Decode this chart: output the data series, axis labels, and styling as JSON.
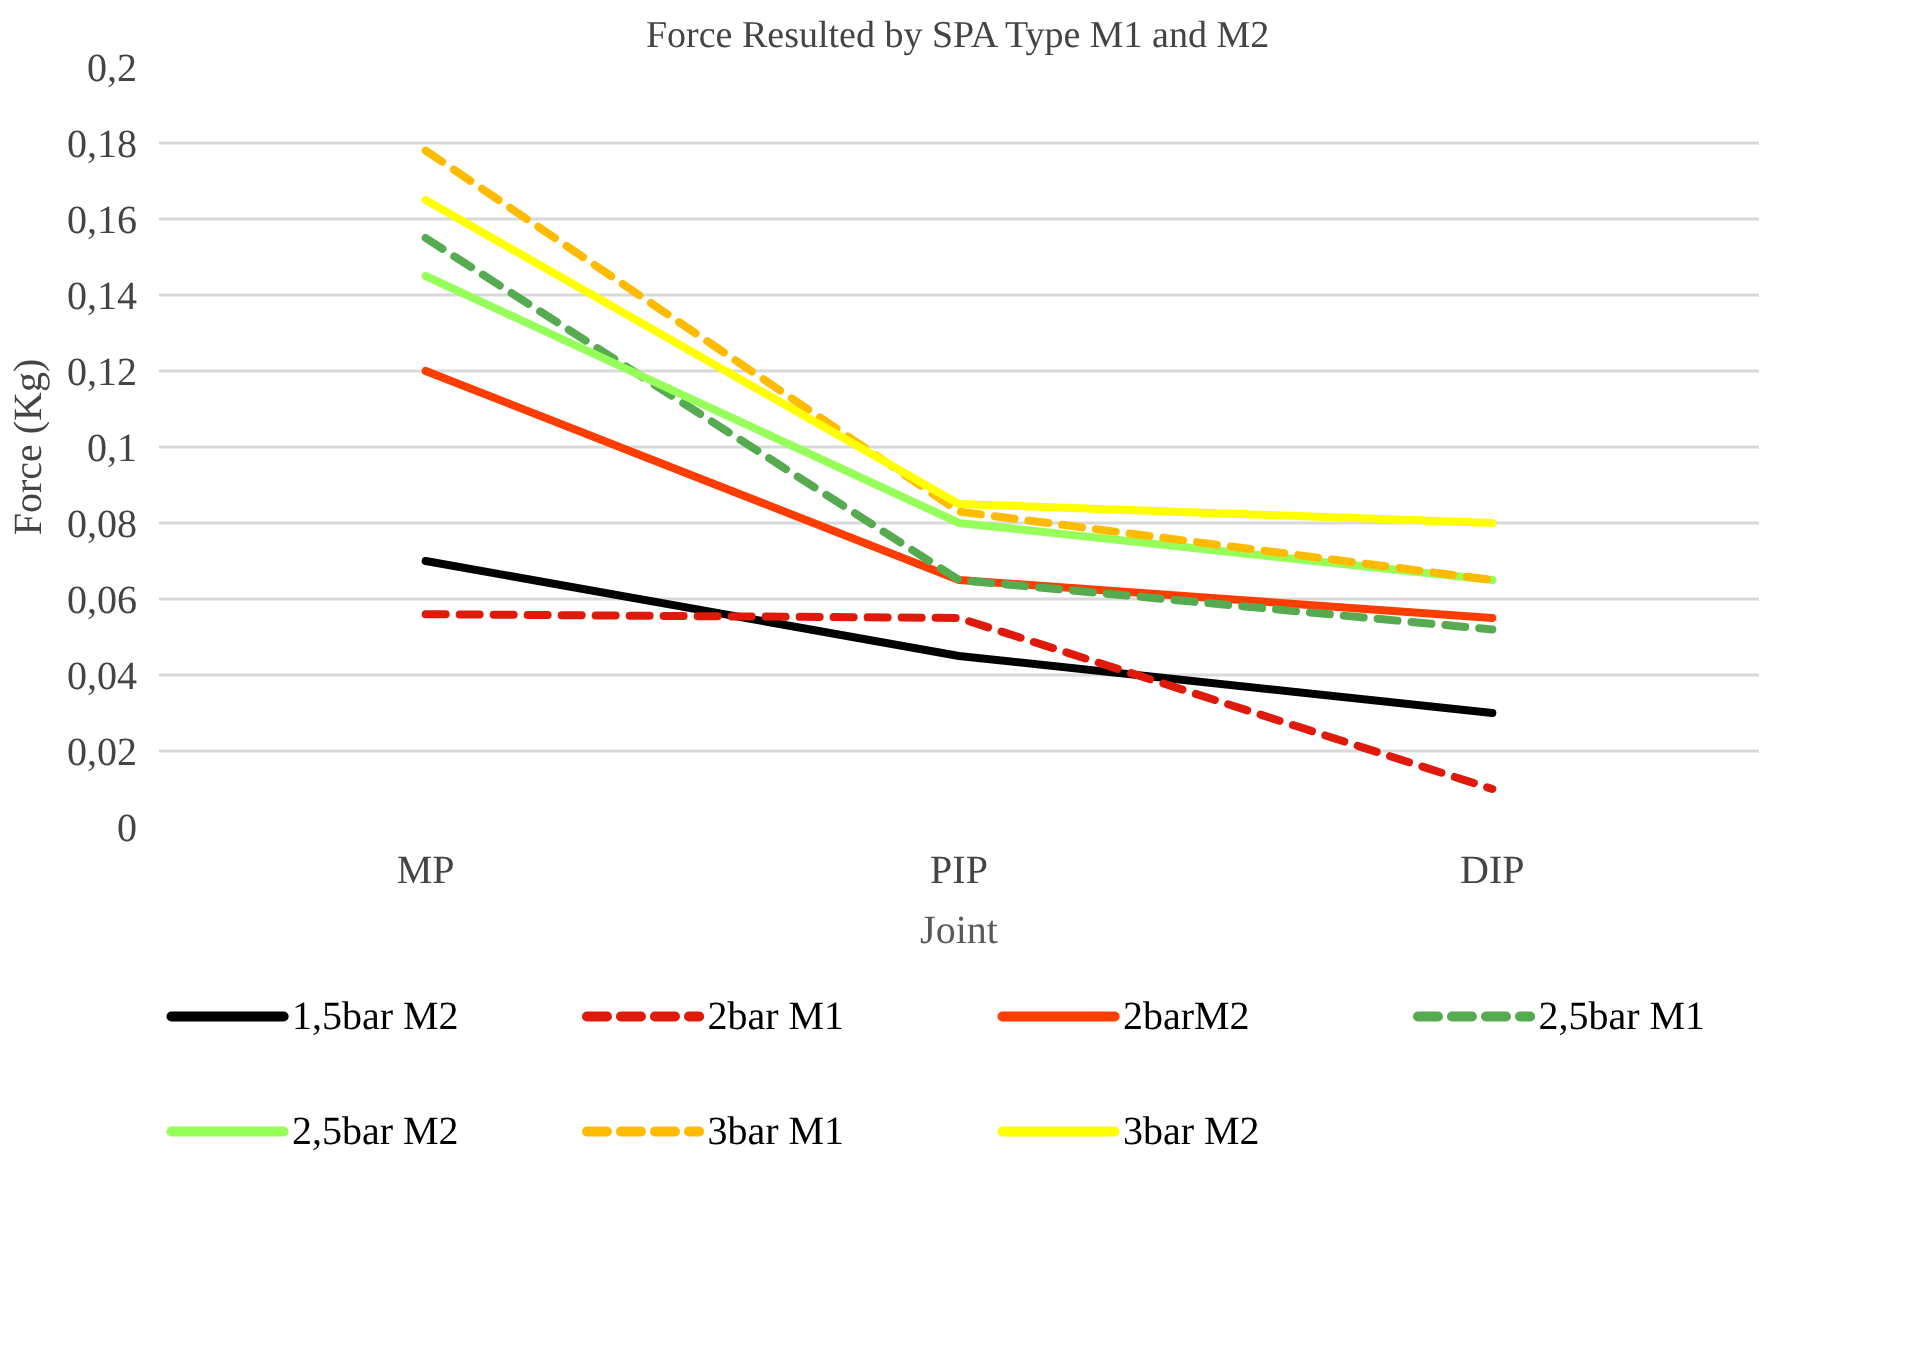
{
  "chart_data": {
    "type": "line",
    "title": "Force Resulted by SPA Type M1 and M2",
    "xlabel": "Joint",
    "ylabel": "Force (Kg)",
    "categories": [
      "MP",
      "PIP",
      "DIP"
    ],
    "series": [
      {
        "name": "1,5bar M2",
        "color": "#000000",
        "line_style": "solid",
        "values": [
          0.07,
          0.045,
          0.03
        ]
      },
      {
        "name": "2bar M1",
        "color": "#e01a0a",
        "line_style": "dashed",
        "values": [
          0.056,
          0.055,
          0.01
        ]
      },
      {
        "name": "2barM2",
        "color": "#ff3d00",
        "line_style": "solid",
        "values": [
          0.12,
          0.065,
          0.055
        ]
      },
      {
        "name": "2,5bar M1",
        "color": "#56aa50",
        "line_style": "dashed",
        "values": [
          0.155,
          0.065,
          0.052
        ]
      },
      {
        "name": "2,5bar M2",
        "color": "#96ff5a",
        "line_style": "solid",
        "values": [
          0.145,
          0.08,
          0.065
        ]
      },
      {
        "name": "3bar M1",
        "color": "#ffbb00",
        "line_style": "dashed",
        "values": [
          0.178,
          0.083,
          0.065
        ]
      },
      {
        "name": "3bar M2",
        "color": "#ffff00",
        "line_style": "solid",
        "values": [
          0.165,
          0.085,
          0.08
        ]
      }
    ],
    "ylim": [
      0,
      0.2
    ],
    "yticks": [
      0,
      {
        "value": 0.02,
        "label": "0,02"
      },
      {
        "value": 0.04,
        "label": "0,04"
      },
      {
        "value": 0.06,
        "label": "0,06"
      },
      {
        "value": 0.08,
        "label": "0,08"
      },
      {
        "value": 0.1,
        "label": "0,1"
      },
      {
        "value": 0.12,
        "label": "0,12"
      },
      {
        "value": 0.14,
        "label": "0,14"
      },
      {
        "value": 0.16,
        "label": "0,16"
      },
      {
        "value": 0.18,
        "label": "0,18"
      },
      {
        "value": 0.2,
        "label": "0,2"
      }
    ],
    "grid": "y",
    "legend": "bottom",
    "marker": "none"
  }
}
